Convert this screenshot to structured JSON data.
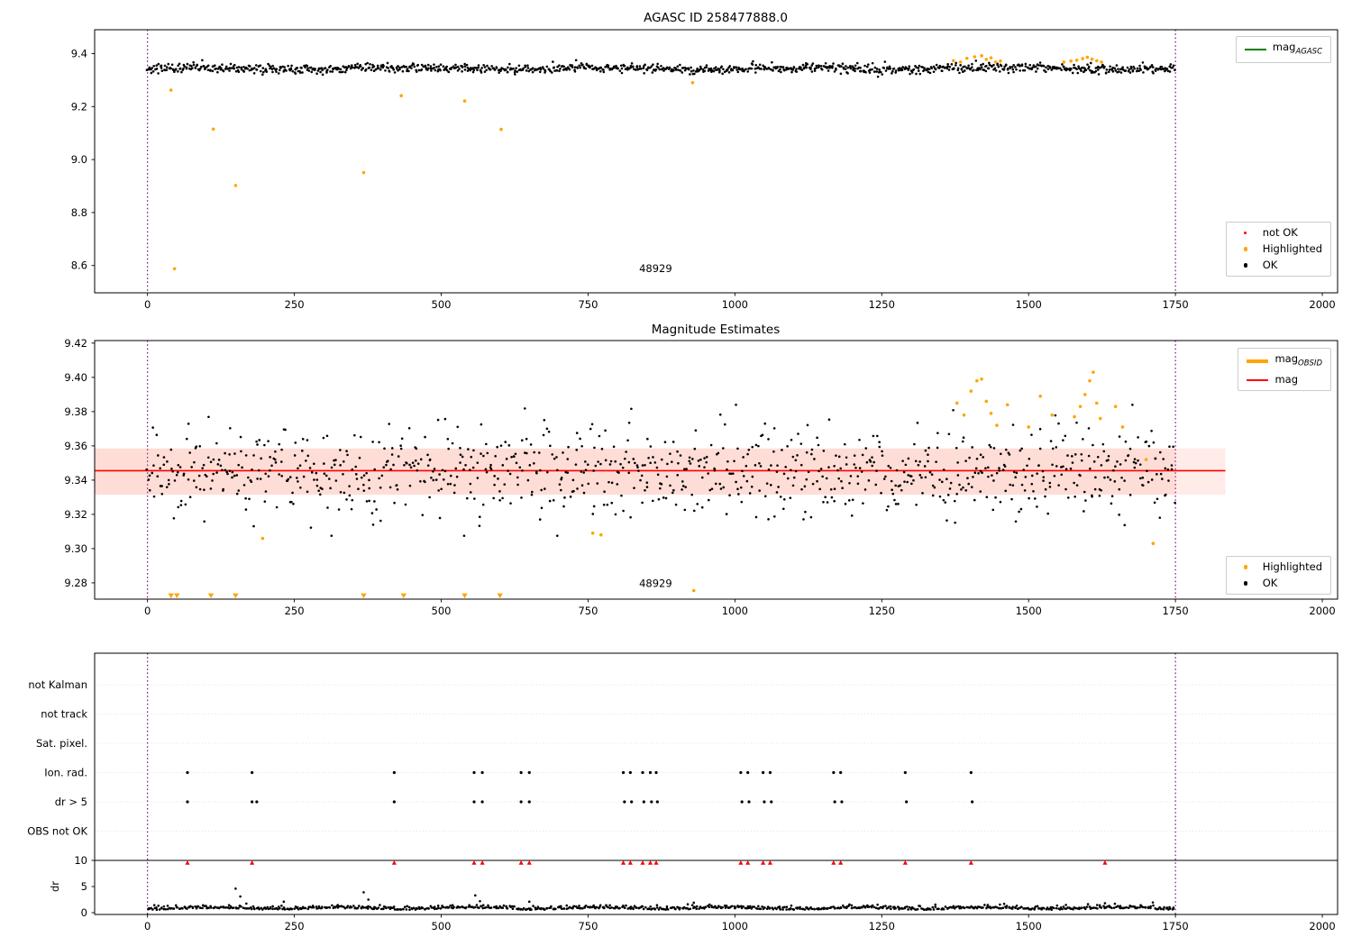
{
  "colors": {
    "ok": "#000000",
    "highlighted": "#ffa500",
    "not_ok": "#ff0000",
    "mag_line": "#ff0000",
    "band_fill": "#ff6347",
    "agasc_line": "#008000",
    "obsid_line": "#ffa500",
    "vline": "#800080",
    "grid": "#d9d9d9",
    "spine": "#000000"
  },
  "chart_data": [
    {
      "type": "scatter",
      "title": "AGASC ID 258477888.0",
      "xlim": [
        -90,
        2026
      ],
      "ylim": [
        8.497,
        9.49
      ],
      "xticks": [
        0,
        250,
        500,
        750,
        1000,
        1250,
        1500,
        1750,
        2000
      ],
      "xtick_labels": [
        "0",
        "250",
        "500",
        "750",
        "1000",
        "1250",
        "1500",
        "1750",
        "2000"
      ],
      "yticks": [
        8.6,
        8.8,
        9.0,
        9.2,
        9.4
      ],
      "ytick_labels": [
        "8.6",
        "8.8",
        "9.0",
        "9.2",
        "9.4"
      ],
      "vlines": [
        0,
        1750
      ],
      "annotation": {
        "text": "48929",
        "x": 865,
        "y": 8.575
      },
      "gen": {
        "seed": 101,
        "n": 1150,
        "xmin": 0,
        "xmax": 1750,
        "mean": 9.344,
        "std": 0.0085,
        "ymin": 9.303,
        "ymax": 9.388
      },
      "highlighted": [
        [
          40,
          9.262
        ],
        [
          46,
          8.588
        ],
        [
          112,
          9.115
        ],
        [
          150,
          8.902
        ],
        [
          368,
          8.951
        ],
        [
          432,
          9.241
        ],
        [
          540,
          9.221
        ],
        [
          602,
          9.114
        ],
        [
          928,
          9.29
        ],
        [
          1372,
          9.373
        ],
        [
          1384,
          9.368
        ],
        [
          1395,
          9.382
        ],
        [
          1408,
          9.388
        ],
        [
          1420,
          9.392
        ],
        [
          1428,
          9.378
        ],
        [
          1436,
          9.384
        ],
        [
          1444,
          9.368
        ],
        [
          1452,
          9.372
        ],
        [
          1560,
          9.368
        ],
        [
          1572,
          9.372
        ],
        [
          1582,
          9.375
        ],
        [
          1592,
          9.381
        ],
        [
          1600,
          9.386
        ],
        [
          1608,
          9.379
        ],
        [
          1616,
          9.373
        ],
        [
          1624,
          9.368
        ]
      ],
      "legend_top": [
        {
          "label": "mag",
          "sub": "AGASC",
          "color": "#008000",
          "swatch": "line"
        }
      ],
      "legend_bottom": [
        {
          "label": "not OK",
          "color": "#ff0000",
          "swatch": "dot",
          "r": 1.6
        },
        {
          "label": "Highlighted",
          "color": "#ffa500",
          "swatch": "dot",
          "r": 2.2
        },
        {
          "label": "OK",
          "color": "#000000",
          "swatch": "dot",
          "r": 2.2
        }
      ]
    },
    {
      "type": "scatter",
      "title": "Magnitude Estimates",
      "xlim": [
        -90,
        2026
      ],
      "ylim": [
        9.2705,
        9.4215
      ],
      "xticks": [
        0,
        250,
        500,
        750,
        1000,
        1250,
        1500,
        1750,
        2000
      ],
      "xtick_labels": [
        "0",
        "250",
        "500",
        "750",
        "1000",
        "1250",
        "1500",
        "1750",
        "2000"
      ],
      "yticks": [
        9.28,
        9.3,
        9.32,
        9.34,
        9.36,
        9.38,
        9.4,
        9.42
      ],
      "ytick_labels": [
        "9.28",
        "9.30",
        "9.32",
        "9.34",
        "9.36",
        "9.38",
        "9.40",
        "9.42"
      ],
      "vlines": [
        0,
        1750
      ],
      "annotation": {
        "text": "48929",
        "x": 865,
        "y": 9.2775
      },
      "mag_line_y": 9.3455,
      "band": {
        "y0": 9.3315,
        "y1": 9.3585,
        "inner_x0": -90,
        "inner_x1": 1750,
        "outer_x1": 1835
      },
      "gen": {
        "seed": 202,
        "n": 950,
        "xmin": 0,
        "xmax": 1750,
        "mean": 9.3455,
        "std": 0.013,
        "ymin": 9.3075,
        "ymax": 9.384
      },
      "highlighted": [
        [
          196,
          9.306
        ],
        [
          758,
          9.309
        ],
        [
          772,
          9.308
        ],
        [
          930,
          9.2755
        ],
        [
          1378,
          9.385
        ],
        [
          1390,
          9.378
        ],
        [
          1402,
          9.392
        ],
        [
          1412,
          9.398
        ],
        [
          1420,
          9.399
        ],
        [
          1428,
          9.386
        ],
        [
          1436,
          9.379
        ],
        [
          1446,
          9.372
        ],
        [
          1464,
          9.384
        ],
        [
          1500,
          9.371
        ],
        [
          1520,
          9.389
        ],
        [
          1540,
          9.378
        ],
        [
          1578,
          9.377
        ],
        [
          1588,
          9.383
        ],
        [
          1596,
          9.39
        ],
        [
          1604,
          9.398
        ],
        [
          1610,
          9.403
        ],
        [
          1616,
          9.385
        ],
        [
          1622,
          9.376
        ],
        [
          1648,
          9.383
        ],
        [
          1660,
          9.371
        ],
        [
          1700,
          9.352
        ],
        [
          1712,
          9.303
        ]
      ],
      "triangles_y": 9.2723,
      "triangles_x": [
        40,
        50,
        108,
        150,
        368,
        436,
        540,
        600
      ],
      "legend_top": [
        {
          "label": "mag",
          "sub": "OBSID",
          "color": "#ffa500",
          "swatch": "thickline"
        },
        {
          "label": "mag",
          "sub": "",
          "color": "#ff0000",
          "swatch": "line"
        }
      ],
      "legend_bottom": [
        {
          "label": "Highlighted",
          "color": "#ffa500",
          "swatch": "dot",
          "r": 2.2
        },
        {
          "label": "OK",
          "color": "#000000",
          "swatch": "dot",
          "r": 2.2
        }
      ]
    },
    {
      "type": "scatter",
      "title": "",
      "xlim": [
        -90,
        2026
      ],
      "xticks": [
        0,
        250,
        500,
        750,
        1000,
        1250,
        1500,
        1750,
        2000
      ],
      "xtick_labels": [
        "0",
        "250",
        "500",
        "750",
        "1000",
        "1250",
        "1500",
        "1750",
        "2000"
      ],
      "vlines": [
        0,
        1750
      ],
      "flag_labels": [
        "not Kalman",
        "not track",
        "Sat. pixel.",
        "Ion. rad.",
        "dr > 5",
        "OBS not OK"
      ],
      "dr_axis_label": "dr",
      "dr_ticks": [
        10,
        5,
        0
      ],
      "dr_tick_labels": [
        "10",
        "5",
        "0"
      ],
      "ion_rad_x": [
        68,
        178,
        420,
        556,
        570,
        636,
        650,
        810,
        822,
        843,
        856,
        866,
        1010,
        1022,
        1048,
        1060,
        1168,
        1180,
        1290,
        1402
      ],
      "dr_gt5_x": [
        68,
        178,
        186,
        420,
        556,
        570,
        636,
        650,
        812,
        824,
        845,
        858,
        868,
        1012,
        1024,
        1050,
        1062,
        1170,
        1182,
        1292,
        1404
      ],
      "dr_red_x": [
        68,
        178,
        420,
        556,
        570,
        636,
        650,
        810,
        822,
        843,
        856,
        866,
        1010,
        1022,
        1048,
        1060,
        1168,
        1180,
        1290,
        1402,
        1630
      ],
      "dr_red_y": 9.55,
      "dr_spikes": [
        [
          150,
          4.6
        ],
        [
          158,
          3.1
        ],
        [
          232,
          2.1
        ],
        [
          368,
          3.9
        ],
        [
          376,
          2.5
        ],
        [
          558,
          3.3
        ],
        [
          566,
          2.2
        ],
        [
          650,
          2.1
        ],
        [
          930,
          1.9
        ],
        [
          1630,
          1.8
        ]
      ],
      "gen": {
        "seed": 303,
        "n": 850,
        "xmin": 0,
        "xmax": 1750,
        "base": 0.55,
        "amp": 0.32,
        "ymin": 0.1,
        "ymax": 2.3
      }
    }
  ]
}
